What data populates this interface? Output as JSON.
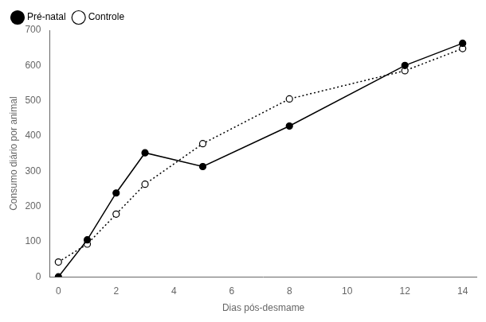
{
  "chart_data": {
    "type": "line",
    "xlabel": "Dias pós-desmame",
    "ylabel": "Consumo diário por animal",
    "x": [
      0,
      1,
      2,
      3,
      5,
      8,
      12,
      14
    ],
    "series": [
      {
        "name": "Pré-natal",
        "color": "#000000",
        "line_style": "solid",
        "marker": "circle",
        "values": [
          0,
          105,
          238,
          352,
          313,
          428,
          600,
          663
        ]
      },
      {
        "name": "Controle",
        "color": "#000000",
        "line_style": "dotted",
        "marker": "open-circle",
        "values": [
          42,
          93,
          178,
          263,
          378,
          505,
          585,
          648
        ]
      }
    ],
    "xlim": [
      -0.3,
      14.5
    ],
    "ylim": [
      0,
      700
    ],
    "xticks": [
      0,
      2,
      4,
      6,
      8,
      10,
      12,
      14
    ],
    "yticks": [
      0,
      100,
      200,
      300,
      400,
      500,
      600,
      700
    ],
    "grid": false,
    "legend": "upper left"
  }
}
